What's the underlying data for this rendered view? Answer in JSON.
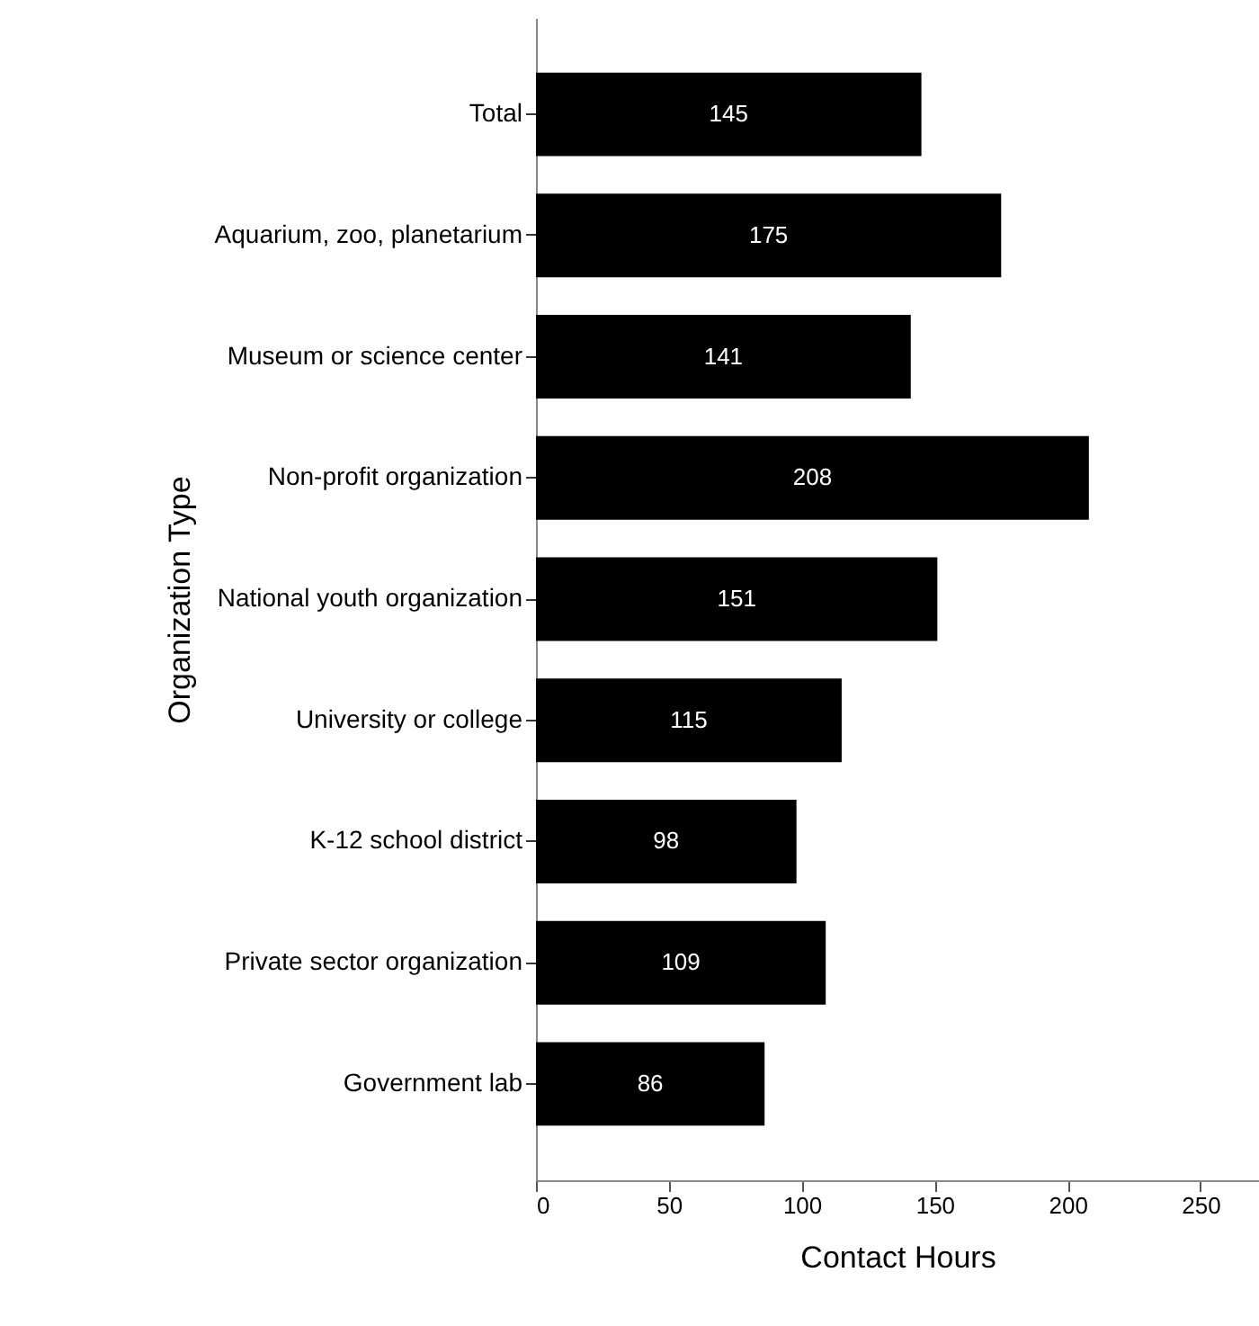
{
  "chart_data": {
    "type": "bar",
    "orientation": "horizontal",
    "xlabel": "Contact Hours",
    "ylabel": "Organization Type",
    "categories": [
      "Total",
      "Aquarium, zoo, planetarium",
      "Museum or science center",
      "Non-profit organization",
      "National youth organization",
      "University or college",
      "K-12 school district",
      "Private sector organization",
      "Government lab"
    ],
    "values": [
      145,
      175,
      141,
      208,
      151,
      115,
      98,
      109,
      86
    ],
    "color": "#000000",
    "xlim": [
      0,
      272
    ],
    "xticks": [
      0,
      50,
      100,
      150,
      200,
      250
    ],
    "grid": false,
    "data_labels": true
  }
}
